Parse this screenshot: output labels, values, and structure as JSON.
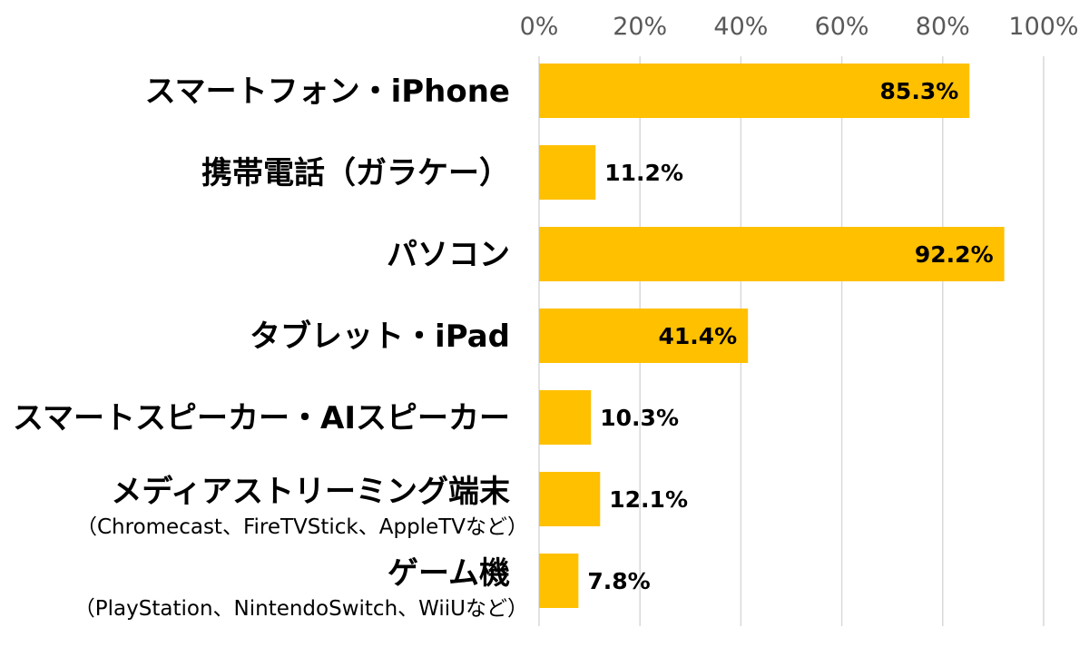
{
  "chart_data": {
    "type": "bar",
    "orientation": "horizontal",
    "categories": [
      {
        "label": "スマートフォン・iPhone",
        "sublabel": ""
      },
      {
        "label": "携帯電話（ガラケー）",
        "sublabel": ""
      },
      {
        "label": "パソコン",
        "sublabel": ""
      },
      {
        "label": "タブレット・iPad",
        "sublabel": ""
      },
      {
        "label": "スマートスピーカー・AIスピーカー",
        "sublabel": ""
      },
      {
        "label": "メディアストリーミング端末",
        "sublabel": "（Chromecast、FireTVStick、AppleTVなど）"
      },
      {
        "label": "ゲーム機",
        "sublabel": "（PlayStation、NintendoSwitch、WiiUなど）"
      }
    ],
    "values": [
      85.3,
      11.2,
      92.2,
      41.4,
      10.3,
      12.1,
      7.8
    ],
    "value_labels": [
      "85.3%",
      "11.2%",
      "92.2%",
      "41.4%",
      "10.3%",
      "12.1%",
      "7.8%"
    ],
    "xlim": [
      0,
      100
    ],
    "x_ticks": [
      0,
      20,
      40,
      60,
      80,
      100
    ],
    "x_tick_labels": [
      "0%",
      "20%",
      "40%",
      "60%",
      "80%",
      "100%"
    ],
    "axis_position": "top",
    "grid": true,
    "bar_color": "#FFC000",
    "title": "",
    "xlabel": "",
    "ylabel": ""
  }
}
